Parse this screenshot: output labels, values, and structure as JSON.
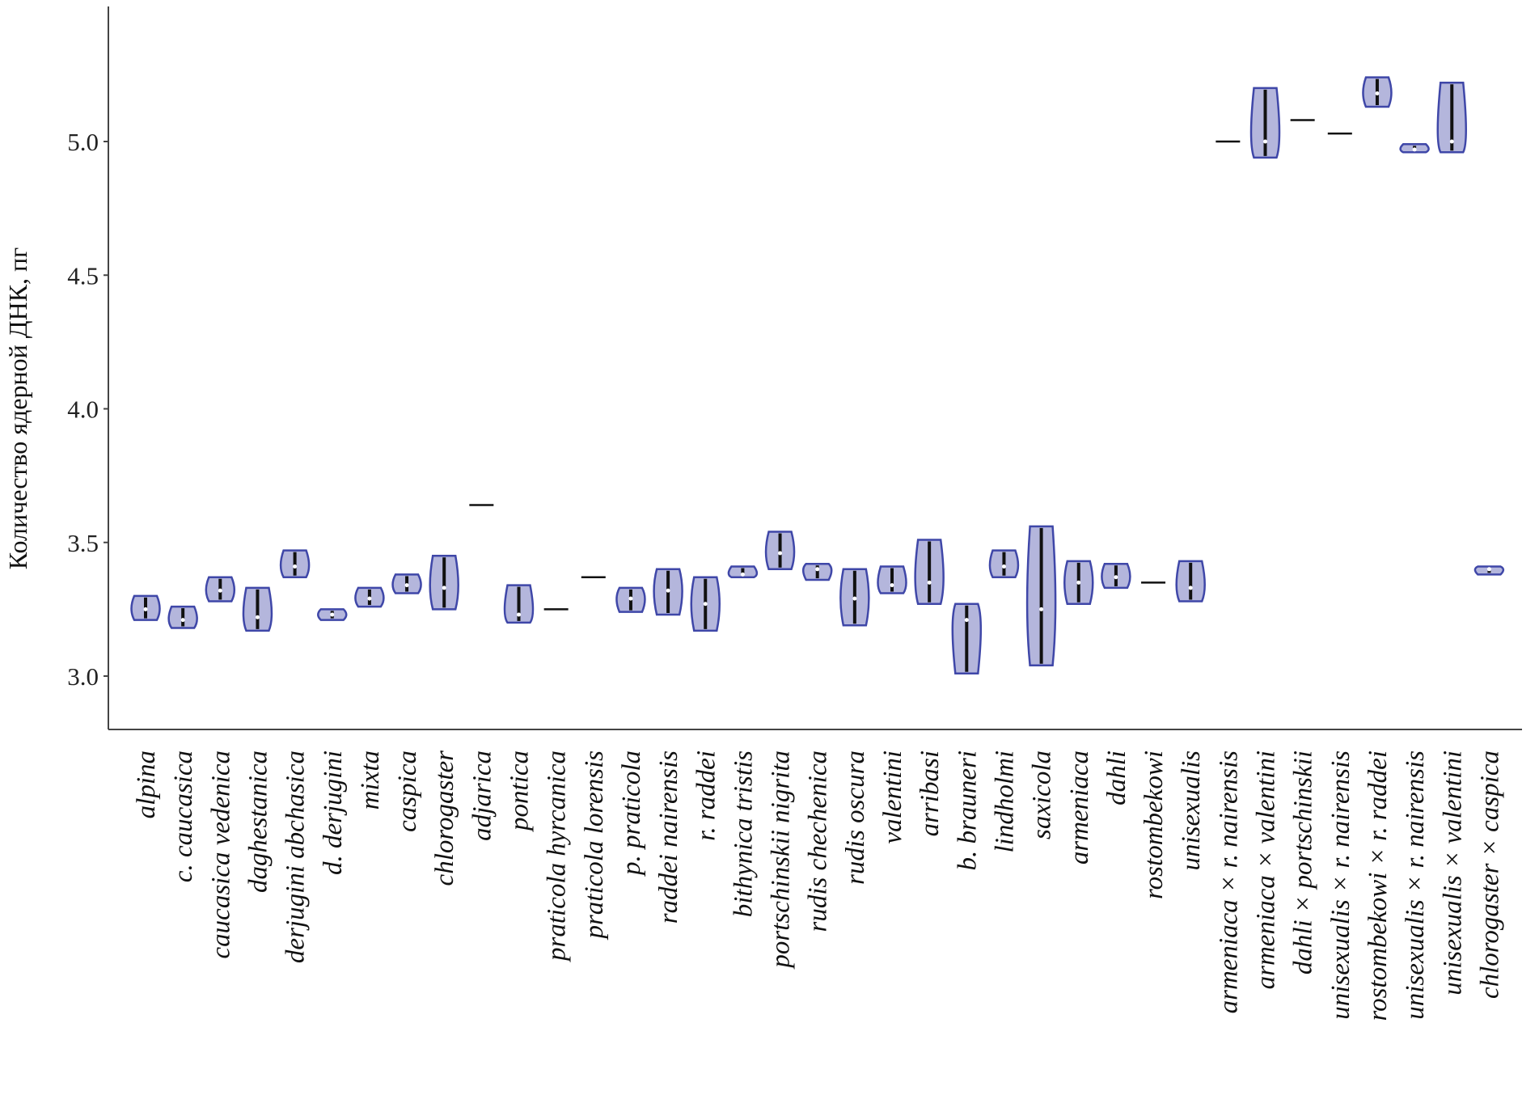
{
  "chart_data": {
    "type": "violin",
    "title": "",
    "xlabel": "",
    "ylabel": "Количество ядерной ДНК, пг",
    "ylim": [
      2.8,
      5.5
    ],
    "yticks": [
      3.0,
      3.5,
      4.0,
      4.5,
      5.0
    ],
    "ytick_labels": [
      "3.0",
      "3.5",
      "4.0",
      "4.5",
      "5.0"
    ],
    "grid": false,
    "colors": {
      "fill": "#b4b6dc",
      "stroke": "#3f47a8",
      "box": "#111111"
    },
    "series": [
      {
        "name": "alpina",
        "min": 3.21,
        "median": 3.25,
        "max": 3.3
      },
      {
        "name": "c. caucasica",
        "min": 3.18,
        "median": 3.21,
        "max": 3.26
      },
      {
        "name": "caucasica vedenica",
        "min": 3.28,
        "median": 3.32,
        "max": 3.37
      },
      {
        "name": "daghestanica",
        "min": 3.17,
        "median": 3.22,
        "max": 3.33
      },
      {
        "name": "derjugini abchasica",
        "min": 3.37,
        "median": 3.41,
        "max": 3.47
      },
      {
        "name": "d. derjugini",
        "min": 3.21,
        "median": 3.23,
        "max": 3.25
      },
      {
        "name": "mixta",
        "min": 3.26,
        "median": 3.29,
        "max": 3.33
      },
      {
        "name": "caspica",
        "min": 3.31,
        "median": 3.34,
        "max": 3.38
      },
      {
        "name": "chlorogaster",
        "min": 3.25,
        "median": 3.33,
        "max": 3.45
      },
      {
        "name": "adjarica",
        "min": 3.64,
        "median": 3.64,
        "max": 3.64
      },
      {
        "name": "pontica",
        "min": 3.2,
        "median": 3.23,
        "max": 3.34
      },
      {
        "name": "praticola hyrcanica",
        "min": 3.25,
        "median": 3.25,
        "max": 3.25
      },
      {
        "name": "praticola lorensis",
        "min": 3.37,
        "median": 3.37,
        "max": 3.37
      },
      {
        "name": "p. praticola",
        "min": 3.24,
        "median": 3.29,
        "max": 3.33
      },
      {
        "name": "raddei nairensis",
        "min": 3.23,
        "median": 3.32,
        "max": 3.4
      },
      {
        "name": "r. raddei",
        "min": 3.17,
        "median": 3.27,
        "max": 3.37
      },
      {
        "name": "bithynica tristis",
        "min": 3.37,
        "median": 3.38,
        "max": 3.41
      },
      {
        "name": "portschinskii nigrita",
        "min": 3.4,
        "median": 3.46,
        "max": 3.54
      },
      {
        "name": "rudis chechenica",
        "min": 3.36,
        "median": 3.4,
        "max": 3.42
      },
      {
        "name": "rudis oscura",
        "min": 3.19,
        "median": 3.29,
        "max": 3.4
      },
      {
        "name": "valentini",
        "min": 3.31,
        "median": 3.34,
        "max": 3.41
      },
      {
        "name": "arribasi",
        "min": 3.27,
        "median": 3.35,
        "max": 3.51
      },
      {
        "name": "b. brauneri",
        "min": 3.01,
        "median": 3.21,
        "max": 3.27
      },
      {
        "name": "lindholmi",
        "min": 3.37,
        "median": 3.41,
        "max": 3.47
      },
      {
        "name": "saxicola",
        "min": 3.04,
        "median": 3.25,
        "max": 3.56
      },
      {
        "name": "armeniaca",
        "min": 3.27,
        "median": 3.35,
        "max": 3.43
      },
      {
        "name": "dahli",
        "min": 3.33,
        "median": 3.37,
        "max": 3.42
      },
      {
        "name": "rostombekowi",
        "min": 3.35,
        "median": 3.35,
        "max": 3.35
      },
      {
        "name": "unisexualis",
        "min": 3.28,
        "median": 3.33,
        "max": 3.43
      },
      {
        "name": "armeniaca × r. nairensis",
        "min": 5.0,
        "median": 5.0,
        "max": 5.0
      },
      {
        "name": "armeniaca × valentini",
        "min": 4.94,
        "median": 5.0,
        "max": 5.2
      },
      {
        "name": "dahli × portschinskii",
        "min": 5.08,
        "median": 5.08,
        "max": 5.08
      },
      {
        "name": "unisexualis × r. nairensis",
        "min": 5.03,
        "median": 5.03,
        "max": 5.03
      },
      {
        "name": "rostombekowi × r. raddei",
        "min": 5.13,
        "median": 5.18,
        "max": 5.24
      },
      {
        "name": "unisexualis × r. nairensis",
        "min": 4.96,
        "median": 4.97,
        "max": 4.99
      },
      {
        "name": "unisexualis × valentini",
        "min": 4.96,
        "median": 5.0,
        "max": 5.22
      },
      {
        "name": "chlorogaster × caspica",
        "min": 3.38,
        "median": 3.4,
        "max": 3.41
      }
    ]
  }
}
